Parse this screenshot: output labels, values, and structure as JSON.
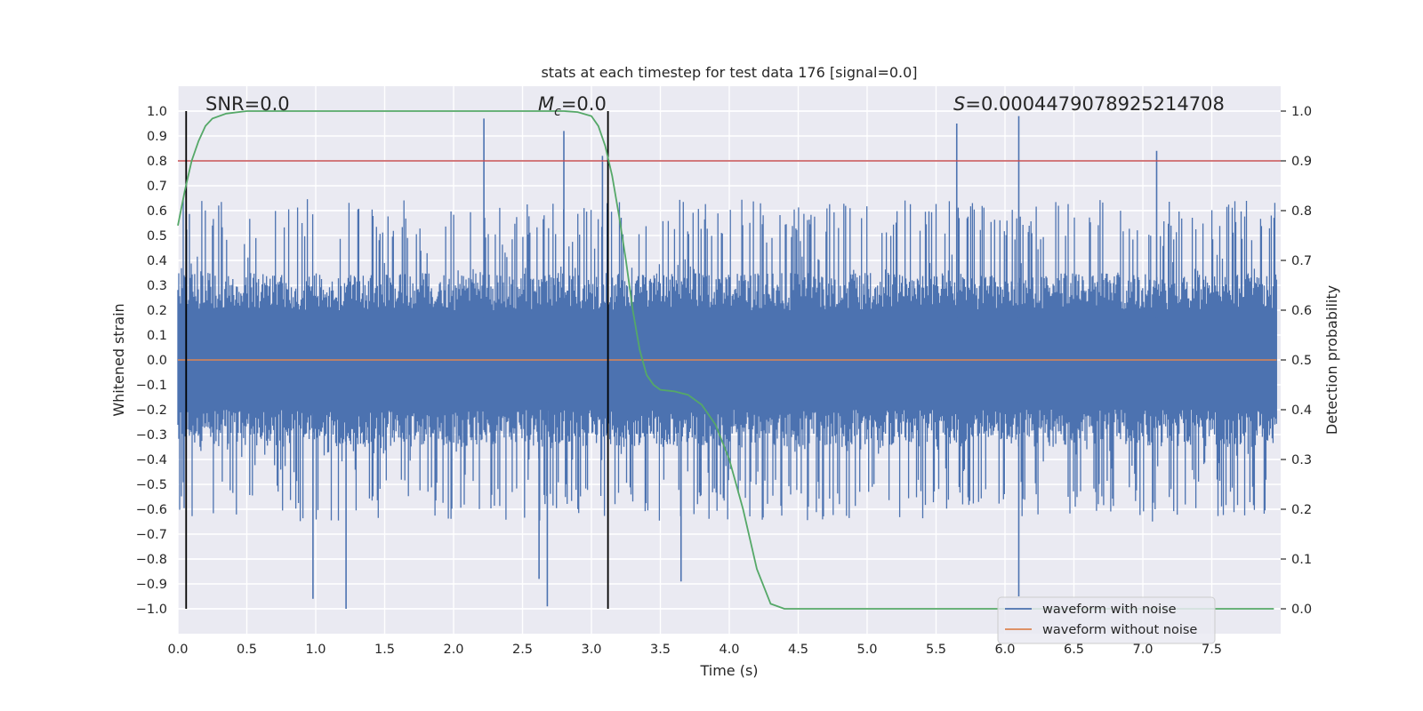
{
  "chart_data": {
    "type": "line",
    "title": "stats at each timestep for test data 176 [signal=0.0]",
    "xlabel": "Time (s)",
    "ylabel": "Whitened strain",
    "y2label": "Detection probability",
    "xlim": [
      0.0,
      8.0
    ],
    "ylim": [
      -1.1,
      1.1
    ],
    "y2lim": [
      -0.05,
      1.05
    ],
    "xticks": [
      "0.0",
      "0.5",
      "1.0",
      "1.5",
      "2.0",
      "2.5",
      "3.0",
      "3.5",
      "4.0",
      "4.5",
      "5.0",
      "5.5",
      "6.0",
      "6.5",
      "7.0",
      "7.5"
    ],
    "yticks": [
      "1.0",
      "0.9",
      "0.8",
      "0.7",
      "0.6",
      "0.5",
      "0.4",
      "0.3",
      "0.2",
      "0.1",
      "0.0",
      "−0.1",
      "−0.2",
      "−0.3",
      "−0.4",
      "−0.5",
      "−0.6",
      "−0.7",
      "−0.8",
      "−0.9",
      "−1.0"
    ],
    "y2ticks": [
      "1.0",
      "0.9",
      "0.8",
      "0.7",
      "0.6",
      "0.5",
      "0.4",
      "0.3",
      "0.2",
      "0.1",
      "0.0"
    ],
    "grid": true,
    "legend_position": "bottom-right",
    "background": "#eaeaf2",
    "annotations": {
      "snr": "SNR=0.0",
      "mc_symbol": "M",
      "mc_sub": "c",
      "mc_value": "=0.0",
      "s_symbol": "S",
      "s_value": "=0.0004479078925214708"
    },
    "series": [
      {
        "name": "waveform with noise",
        "color": "#4c72b0",
        "kind": "noise",
        "amplitude_core": 0.18,
        "extremes": [
          {
            "x": 2.22,
            "y": 0.97
          },
          {
            "x": 2.8,
            "y": 0.92
          },
          {
            "x": 3.08,
            "y": 0.82
          },
          {
            "x": 5.65,
            "y": 0.95
          },
          {
            "x": 6.1,
            "y": 0.98
          },
          {
            "x": 7.1,
            "y": 0.84
          },
          {
            "x": 1.22,
            "y": -1.0
          },
          {
            "x": 2.68,
            "y": -0.99
          },
          {
            "x": 0.98,
            "y": -0.96
          },
          {
            "x": 6.1,
            "y": -0.95
          },
          {
            "x": 3.65,
            "y": -0.89
          },
          {
            "x": 2.62,
            "y": -0.88
          }
        ]
      },
      {
        "name": "waveform without noise",
        "color": "#dd8452",
        "kind": "flat",
        "value": 0.0
      },
      {
        "name": "detection probability",
        "color": "#55a868",
        "axis": "right",
        "points": [
          [
            0.0,
            0.77
          ],
          [
            0.05,
            0.84
          ],
          [
            0.1,
            0.9
          ],
          [
            0.15,
            0.94
          ],
          [
            0.2,
            0.97
          ],
          [
            0.25,
            0.985
          ],
          [
            0.35,
            0.995
          ],
          [
            0.5,
            1.0
          ],
          [
            1.0,
            1.0
          ],
          [
            2.0,
            1.0
          ],
          [
            2.8,
            1.0
          ],
          [
            2.9,
            0.998
          ],
          [
            3.0,
            0.99
          ],
          [
            3.05,
            0.97
          ],
          [
            3.1,
            0.93
          ],
          [
            3.15,
            0.87
          ],
          [
            3.2,
            0.79
          ],
          [
            3.25,
            0.7
          ],
          [
            3.3,
            0.6
          ],
          [
            3.35,
            0.52
          ],
          [
            3.4,
            0.47
          ],
          [
            3.45,
            0.45
          ],
          [
            3.5,
            0.44
          ],
          [
            3.6,
            0.437
          ],
          [
            3.7,
            0.43
          ],
          [
            3.8,
            0.41
          ],
          [
            3.9,
            0.37
          ],
          [
            4.0,
            0.3
          ],
          [
            4.1,
            0.2
          ],
          [
            4.2,
            0.08
          ],
          [
            4.3,
            0.01
          ],
          [
            4.4,
            0.0
          ],
          [
            5.0,
            0.0
          ],
          [
            6.0,
            0.0
          ],
          [
            7.0,
            0.0
          ],
          [
            7.95,
            0.0
          ]
        ]
      }
    ],
    "hlines": [
      {
        "axis": "right",
        "value": 0.9,
        "color": "#c44e52"
      }
    ],
    "vlines": [
      {
        "x": 0.06,
        "color": "#000000"
      },
      {
        "x": 3.12,
        "color": "#000000"
      }
    ]
  }
}
